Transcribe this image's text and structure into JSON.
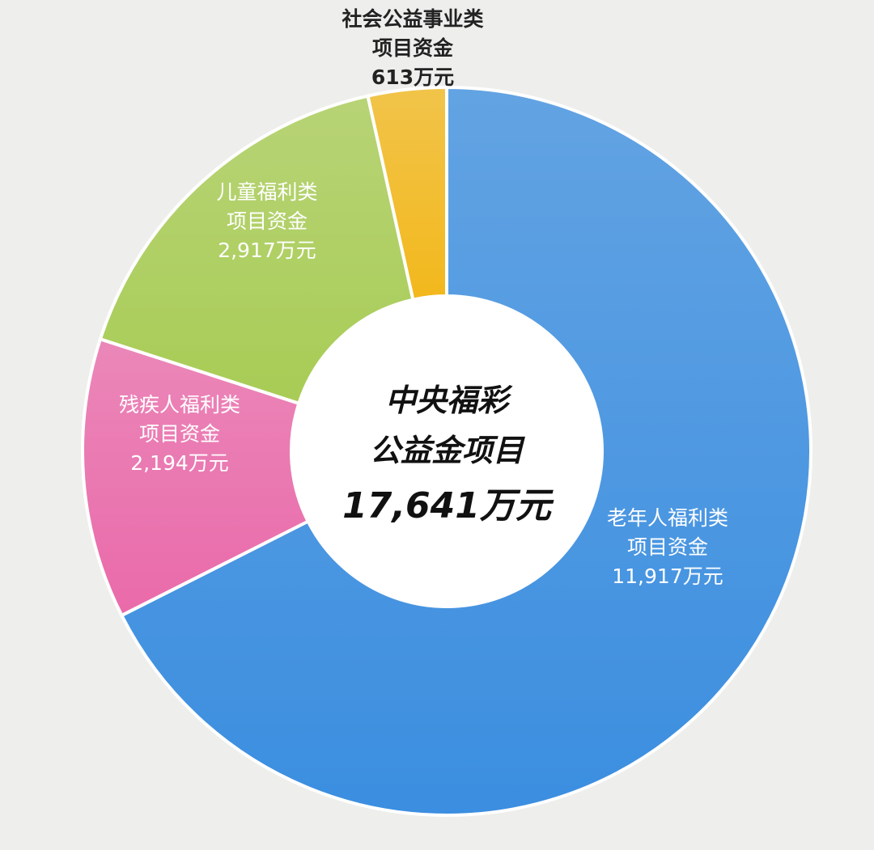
{
  "chart_data": {
    "type": "pie",
    "title_lines": [
      "中央福彩",
      "公益金项目"
    ],
    "total_label": "17,641万元",
    "categories": [
      "老年人福利类项目资金",
      "残疾人福利类项目资金",
      "儿童福利类项目资金",
      "社会公益事业类项目资金"
    ],
    "values": [
      11917,
      2194,
      2917,
      613
    ],
    "slices": [
      {
        "name_lines": [
          "老年人福利类",
          "项目资金"
        ],
        "value": 11917,
        "value_label": "11,917万元",
        "color": "#3b8ee0",
        "label_color": "#ffffff"
      },
      {
        "name_lines": [
          "残疾人福利类",
          "项目资金"
        ],
        "value": 2194,
        "value_label": "2,194万元",
        "color": "#ea6aaa",
        "label_color": "#ffffff"
      },
      {
        "name_lines": [
          "儿童福利类",
          "项目资金"
        ],
        "value": 2917,
        "value_label": "2,917万元",
        "color": "#a8cc55",
        "label_color": "#ffffff"
      },
      {
        "name_lines": [
          "社会公益事业类",
          "项目资金"
        ],
        "value": 613,
        "value_label": "613万元",
        "color": "#f2b81c",
        "label_color": "#222222"
      }
    ],
    "legend": "none"
  }
}
